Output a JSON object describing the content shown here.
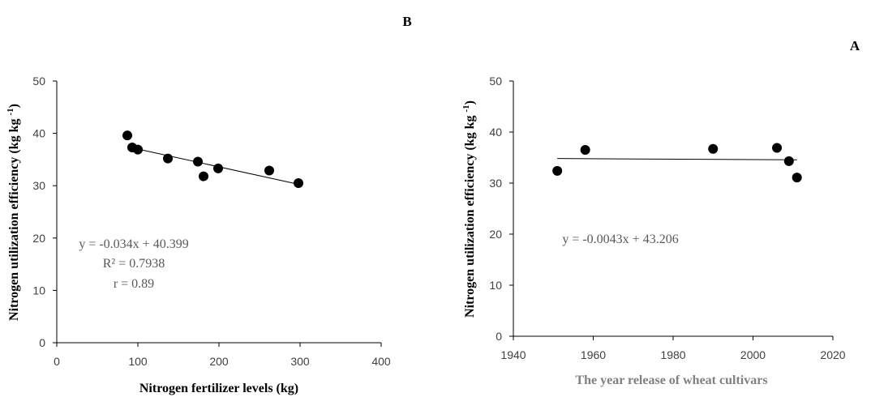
{
  "chart_data": [
    {
      "type": "scatter",
      "panel_label": "B",
      "xlabel": "Nitrogen fertilizer levels (kg)",
      "xlabel_color": "#000000",
      "ylabel": "Nitrogen utilization efficiency (kg kg-1)",
      "xlim": [
        0,
        400
      ],
      "ylim": [
        0,
        50
      ],
      "x_ticks": [
        0,
        100,
        200,
        300,
        400
      ],
      "y_ticks": [
        0,
        10,
        20,
        30,
        40,
        50
      ],
      "points": [
        {
          "x": 87,
          "y": 39.6
        },
        {
          "x": 93,
          "y": 37.3
        },
        {
          "x": 100,
          "y": 36.9
        },
        {
          "x": 137,
          "y": 35.2
        },
        {
          "x": 174,
          "y": 34.6
        },
        {
          "x": 181,
          "y": 31.8
        },
        {
          "x": 199,
          "y": 33.3
        },
        {
          "x": 262,
          "y": 32.9
        },
        {
          "x": 298,
          "y": 30.5
        }
      ],
      "trendline": {
        "slope": -0.034,
        "intercept": 40.399,
        "x_range": [
          87,
          300
        ]
      },
      "annotations": [
        "y = -0.034x + 40.399",
        "R² = 0.7938",
        "r = 0.89"
      ],
      "grid": false,
      "legend": "none"
    },
    {
      "type": "scatter",
      "panel_label": "A",
      "xlabel": "The year release of wheat cultivars",
      "xlabel_color": "#808080",
      "ylabel": "Nitrogen utilization efficiency (kg kg-1)",
      "xlim": [
        1940,
        2020
      ],
      "ylim": [
        0,
        50
      ],
      "x_ticks": [
        1940,
        1960,
        1980,
        2000,
        2020
      ],
      "y_ticks": [
        0,
        10,
        20,
        30,
        40,
        50
      ],
      "points": [
        {
          "x": 1951,
          "y": 32.4
        },
        {
          "x": 1958,
          "y": 36.5
        },
        {
          "x": 1990,
          "y": 36.7
        },
        {
          "x": 2006,
          "y": 36.9
        },
        {
          "x": 2009,
          "y": 34.3
        },
        {
          "x": 2011,
          "y": 31.1
        }
      ],
      "trendline": {
        "slope": -0.0043,
        "intercept": 43.206,
        "x_range": [
          1951,
          2011
        ]
      },
      "annotations": [
        "y = -0.0043x + 43.206"
      ],
      "grid": false,
      "legend": "none"
    }
  ]
}
